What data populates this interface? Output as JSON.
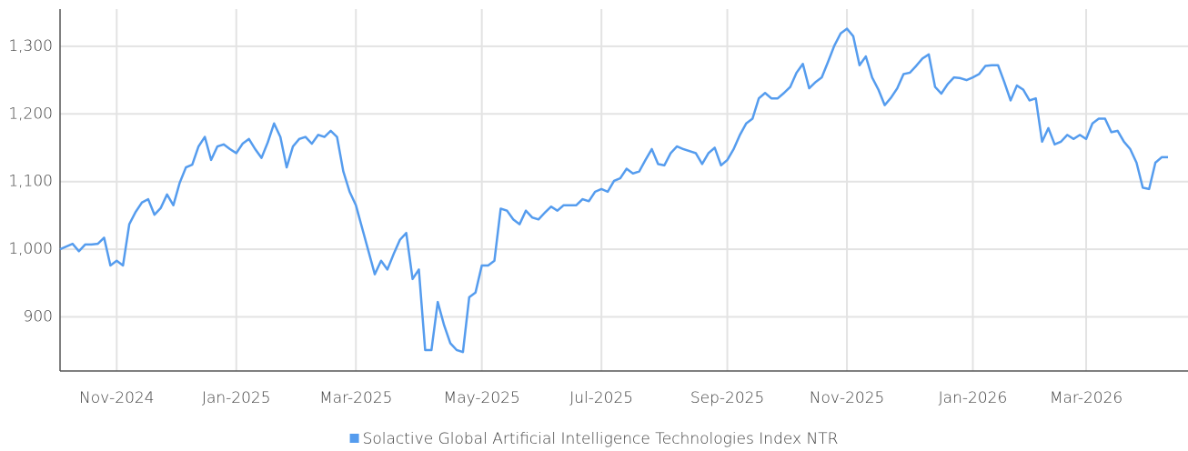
{
  "chart_data": {
    "type": "line",
    "categories": [
      null,
      null,
      null,
      null,
      null,
      null,
      null,
      null,
      null,
      "Nov-2024",
      null,
      null,
      null,
      null,
      null,
      null,
      null,
      null,
      null,
      null,
      null,
      null,
      null,
      null,
      null,
      null,
      null,
      null,
      "Jan-2025",
      null,
      null,
      null,
      null,
      null,
      null,
      null,
      null,
      null,
      null,
      null,
      null,
      null,
      null,
      null,
      null,
      null,
      null,
      "Mar-2025",
      null,
      null,
      null,
      null,
      null,
      null,
      null,
      null,
      null,
      null,
      null,
      null,
      null,
      null,
      null,
      null,
      null,
      null,
      null,
      "May-2025",
      null,
      null,
      null,
      null,
      null,
      null,
      null,
      null,
      null,
      null,
      null,
      null,
      null,
      null,
      null,
      null,
      null,
      null,
      "Jul-2025",
      null,
      null,
      null,
      null,
      null,
      null,
      null,
      null,
      null,
      null,
      null,
      null,
      null,
      null,
      null,
      null,
      null,
      null,
      null,
      "Sep-2025",
      null,
      null,
      null,
      null,
      null,
      null,
      null,
      null,
      null,
      null,
      null,
      null,
      null,
      null,
      null,
      null,
      null,
      null,
      "Nov-2025",
      null,
      null,
      null,
      null,
      null,
      null,
      null,
      null,
      null,
      null,
      null,
      null,
      null,
      null,
      null,
      null,
      null,
      null,
      null,
      "Jan-2026",
      null,
      null,
      null,
      null,
      null,
      null,
      null,
      null,
      null,
      null,
      null,
      null,
      null,
      null,
      null,
      null,
      null,
      "Mar-2026",
      null,
      null,
      null,
      null,
      null,
      null,
      null,
      null,
      null,
      null,
      null,
      null,
      null
    ],
    "series": [
      {
        "name": "Solactive Global Artificial Intelligence Technologies Index NTR",
        "color": "#559cee",
        "values": [
          1000,
          1004,
          1008,
          997,
          1007,
          1007,
          1008,
          1017,
          976,
          983,
          976,
          1037,
          1055,
          1069,
          1074,
          1051,
          1061,
          1081,
          1065,
          1098,
          1121,
          1125,
          1152,
          1166,
          1132,
          1152,
          1155,
          1148,
          1142,
          1156,
          1163,
          1148,
          1135,
          1158,
          1186,
          1166,
          1121,
          1152,
          1163,
          1166,
          1156,
          1169,
          1166,
          1175,
          1166,
          1115,
          1085,
          1065,
          1031,
          997,
          963,
          983,
          970,
          993,
          1014,
          1024,
          956,
          970,
          851,
          851,
          922,
          888,
          861,
          851,
          848,
          929,
          936,
          976,
          976,
          983,
          1060,
          1057,
          1044,
          1037,
          1057,
          1047,
          1044,
          1054,
          1063,
          1057,
          1065,
          1065,
          1065,
          1074,
          1071,
          1085,
          1089,
          1085,
          1101,
          1105,
          1119,
          1112,
          1115,
          1132,
          1148,
          1126,
          1124,
          1142,
          1152,
          1148,
          1145,
          1142,
          1126,
          1142,
          1150,
          1124,
          1132,
          1148,
          1169,
          1186,
          1193,
          1223,
          1231,
          1223,
          1223,
          1231,
          1240,
          1261,
          1274,
          1238,
          1247,
          1254,
          1277,
          1301,
          1319,
          1326,
          1315,
          1272,
          1285,
          1254,
          1236,
          1213,
          1224,
          1238,
          1259,
          1261,
          1271,
          1282,
          1288,
          1240,
          1230,
          1244,
          1254,
          1253,
          1250,
          1254,
          1259,
          1271,
          1272,
          1272,
          1247,
          1220,
          1242,
          1236,
          1220,
          1223,
          1159,
          1179,
          1155,
          1159,
          1169,
          1163,
          1169,
          1163,
          1186,
          1193,
          1193,
          1173,
          1175,
          1159,
          1148,
          1128,
          1091,
          1089,
          1128,
          1136,
          1136
        ]
      }
    ],
    "ylim": [
      820,
      1355
    ],
    "yticks": [
      900,
      {
        "value": 1000,
        "label": "1,000"
      },
      {
        "value": 1100,
        "label": "1,100"
      },
      {
        "value": 1200,
        "label": "1,200"
      },
      {
        "value": 1300,
        "label": "1,300"
      }
    ],
    "grid": true,
    "legend": "bottom"
  }
}
